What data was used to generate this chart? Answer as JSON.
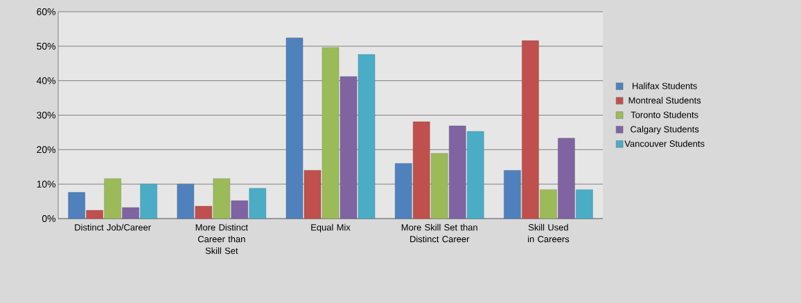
{
  "chart_data": {
    "type": "bar",
    "categories": [
      "Distinct Job/Career",
      "More Distinct Career than Skill Set",
      "Equal Mix",
      "More Skill Set than Distinct Career",
      "Skill Used in Careers"
    ],
    "series": [
      {
        "name": "Halifax Students",
        "color": "#4f81bd",
        "values": [
          7.6,
          10.0,
          52.4,
          16.0,
          14.0
        ]
      },
      {
        "name": "Montreal Students",
        "color": "#c0504d",
        "values": [
          2.4,
          3.6,
          14.0,
          28.1,
          51.6
        ]
      },
      {
        "name": "Toronto Students",
        "color": "#9bbb59",
        "values": [
          11.6,
          11.6,
          49.6,
          18.9,
          8.4
        ]
      },
      {
        "name": "Calgary Students",
        "color": "#8064a2",
        "values": [
          3.2,
          5.2,
          41.2,
          26.9,
          23.3
        ]
      },
      {
        "name": "Vancouver Students",
        "color": "#4bacc6",
        "values": [
          10.0,
          8.8,
          47.6,
          25.3,
          8.4
        ]
      }
    ],
    "ylim": [
      0,
      60
    ],
    "yticks": [
      {
        "value": 0,
        "label": "0%"
      },
      {
        "value": 10,
        "label": "10%"
      },
      {
        "value": 20,
        "label": "20%"
      },
      {
        "value": 30,
        "label": "30%"
      },
      {
        "value": 40,
        "label": "40%"
      },
      {
        "value": 50,
        "label": "50%"
      },
      {
        "value": 60,
        "label": "60%"
      }
    ],
    "grid": "y",
    "legend": "right"
  }
}
